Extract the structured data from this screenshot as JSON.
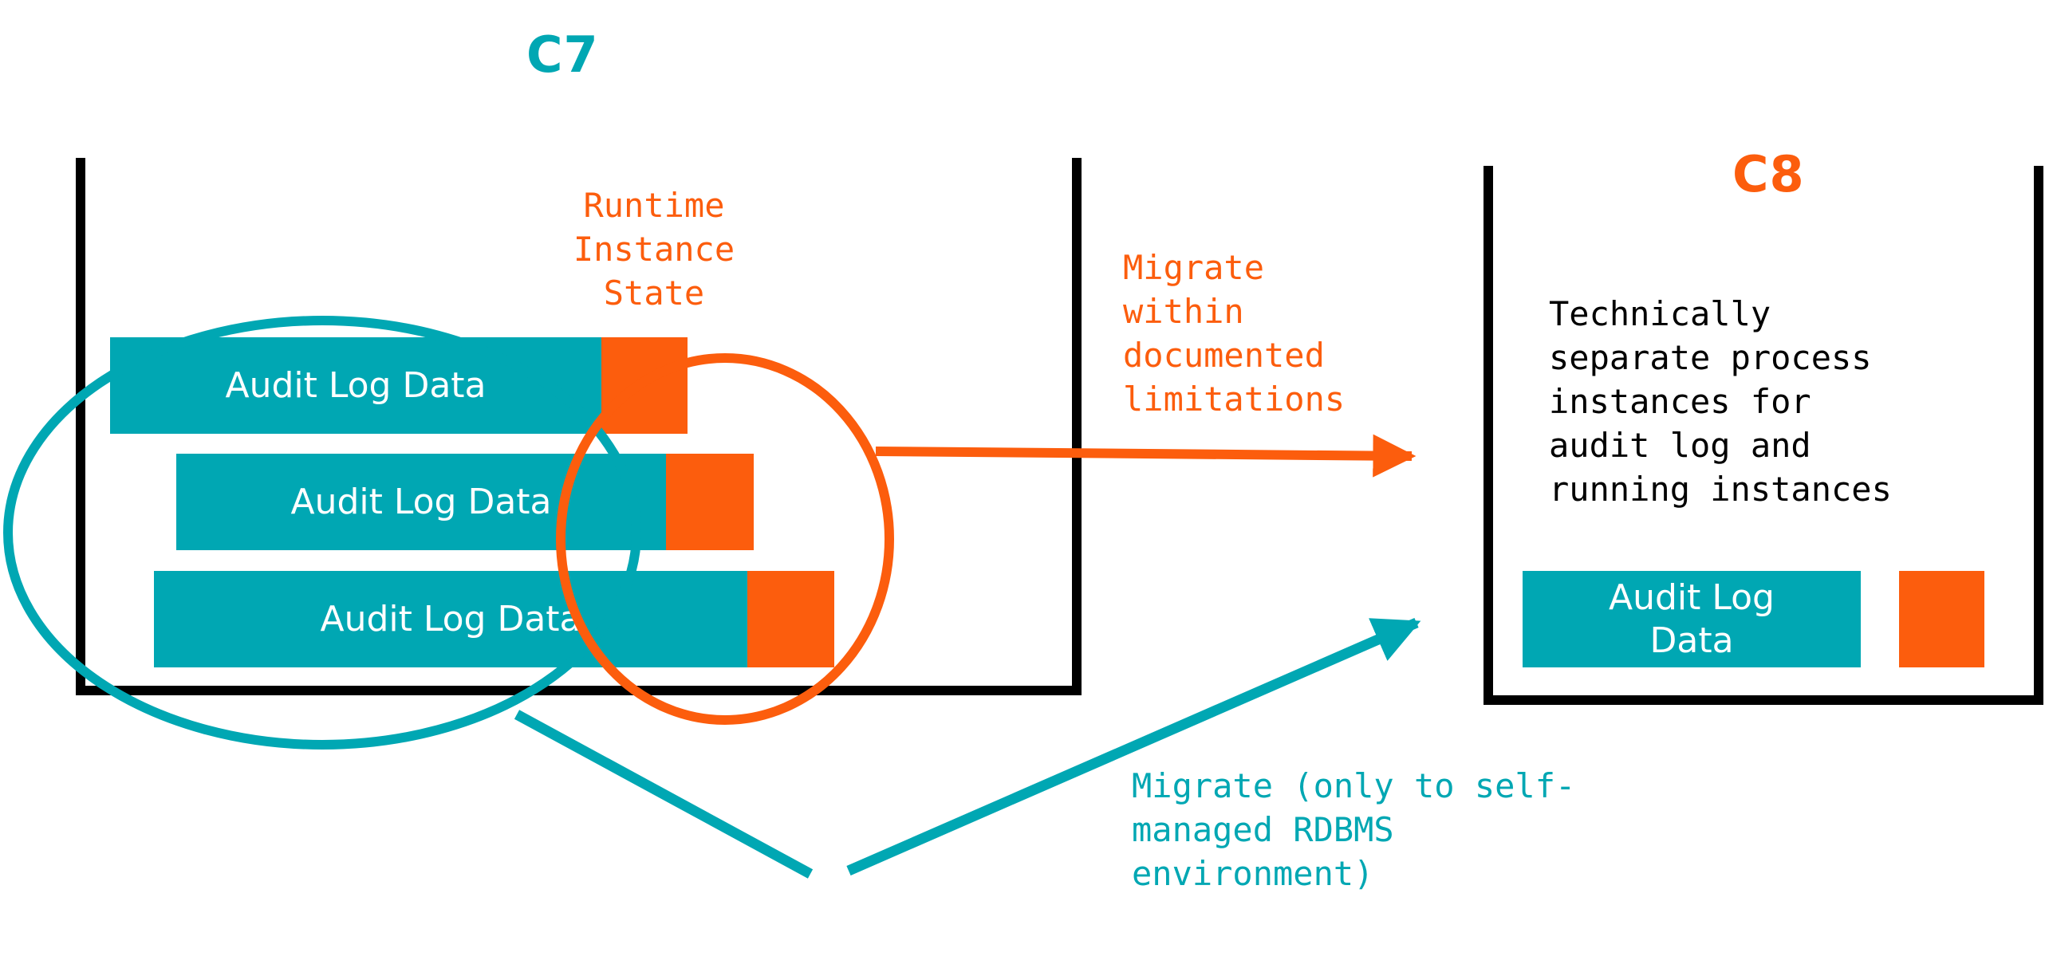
{
  "colors": {
    "teal": "#00a7b3",
    "orange": "#fc5d0d",
    "black": "#000000",
    "white": "#ffffff"
  },
  "c7": {
    "title": "C7",
    "runtime_label": "Runtime\nInstance\nState",
    "audit_bars": [
      {
        "label": "Audit Log Data"
      },
      {
        "label": "Audit Log Data"
      },
      {
        "label": "Audit Log Data"
      }
    ]
  },
  "c8": {
    "title": "C8",
    "description": "Technically\nseparate process\ninstances for\naudit log and\nrunning instances",
    "audit_bar": {
      "label": "Audit Log\nData"
    }
  },
  "arrows": {
    "runtime_migration_label": "Migrate\nwithin\ndocumented\nlimitations",
    "audit_migration_label": "Migrate (only to self-\nmanaged RDBMS\nenvironment)"
  }
}
